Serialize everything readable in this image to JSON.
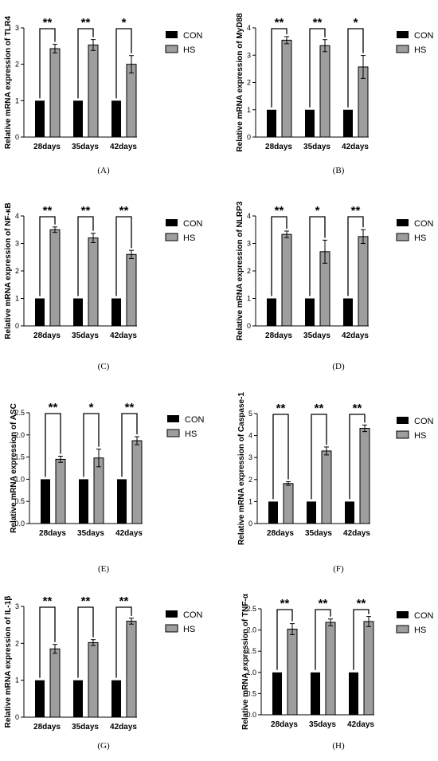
{
  "figure": {
    "legend": {
      "con_label": "CON",
      "hs_label": "HS",
      "con_color": "#000000",
      "hs_color": "#9e9e9e"
    }
  },
  "chart_data": [
    {
      "type": "bar",
      "panel": "(A)",
      "ylabel": "Relative mRNA expression of TLR4",
      "ylim": [
        0,
        3
      ],
      "yticks": [
        0,
        1,
        2,
        3
      ],
      "categories": [
        "28days",
        "35days",
        "42days"
      ],
      "series": [
        {
          "name": "CON",
          "values": [
            1,
            1,
            1
          ]
        },
        {
          "name": "HS",
          "values": [
            2.43,
            2.53,
            2.0
          ],
          "errors": [
            0.12,
            0.15,
            0.24
          ]
        }
      ],
      "significance": [
        "**",
        "**",
        "*"
      ]
    },
    {
      "type": "bar",
      "panel": "(B)",
      "ylabel": "Relative mRNA expression of MyD88",
      "ylim": [
        0,
        4
      ],
      "yticks": [
        0,
        1,
        2,
        3,
        4
      ],
      "categories": [
        "28days",
        "35days",
        "42days"
      ],
      "series": [
        {
          "name": "CON",
          "values": [
            1,
            1,
            1
          ]
        },
        {
          "name": "HS",
          "values": [
            3.55,
            3.35,
            2.57
          ],
          "errors": [
            0.13,
            0.22,
            0.42
          ]
        }
      ],
      "significance": [
        "**",
        "**",
        "*"
      ]
    },
    {
      "type": "bar",
      "panel": "(C)",
      "ylabel": "Relative mRNA expression of NF-κB",
      "ylim": [
        0,
        4
      ],
      "yticks": [
        0,
        1,
        2,
        3,
        4
      ],
      "categories": [
        "28days",
        "35days",
        "42days"
      ],
      "series": [
        {
          "name": "CON",
          "values": [
            1,
            1,
            1
          ]
        },
        {
          "name": "HS",
          "values": [
            3.5,
            3.2,
            2.6
          ],
          "errors": [
            0.1,
            0.17,
            0.15
          ]
        }
      ],
      "significance": [
        "**",
        "**",
        "**"
      ]
    },
    {
      "type": "bar",
      "panel": "(D)",
      "ylabel": "Relative mRNA expression of NLRP3",
      "ylim": [
        0,
        4
      ],
      "yticks": [
        0,
        1,
        2,
        3,
        4
      ],
      "categories": [
        "28days",
        "35days",
        "42days"
      ],
      "series": [
        {
          "name": "CON",
          "values": [
            1,
            1,
            1
          ]
        },
        {
          "name": "HS",
          "values": [
            3.33,
            2.7,
            3.25
          ],
          "errors": [
            0.12,
            0.42,
            0.25
          ]
        }
      ],
      "significance": [
        "**",
        "*",
        "**"
      ]
    },
    {
      "type": "bar",
      "panel": "(E)",
      "ylabel": "Relative mRNA expression of ASC",
      "ylim": [
        0,
        2.5
      ],
      "yticks": [
        0,
        0.5,
        1.0,
        1.5,
        2.0,
        2.5
      ],
      "ytick_labels": [
        "0.0",
        "0.5",
        "1.0",
        "1.5",
        "2.0",
        "2.5"
      ],
      "categories": [
        "28days",
        "35days",
        "42days"
      ],
      "series": [
        {
          "name": "CON",
          "values": [
            1,
            1,
            1
          ]
        },
        {
          "name": "HS",
          "values": [
            1.45,
            1.48,
            1.87
          ],
          "errors": [
            0.07,
            0.2,
            0.09
          ]
        }
      ],
      "significance": [
        "**",
        "*",
        "**"
      ]
    },
    {
      "type": "bar",
      "panel": "(F)",
      "ylabel": "Relative mRNA expression of Caspase-1",
      "ylim": [
        0,
        5
      ],
      "yticks": [
        0,
        1,
        2,
        3,
        4,
        5
      ],
      "categories": [
        "28days",
        "35days",
        "42days"
      ],
      "series": [
        {
          "name": "CON",
          "values": [
            1,
            1,
            1
          ]
        },
        {
          "name": "HS",
          "values": [
            1.82,
            3.3,
            4.33
          ],
          "errors": [
            0.08,
            0.18,
            0.15
          ]
        }
      ],
      "significance": [
        "**",
        "**",
        "**"
      ]
    },
    {
      "type": "bar",
      "panel": "(G)",
      "ylabel": "Relative mRNA expression of IL-1β",
      "ylim": [
        0,
        3
      ],
      "yticks": [
        0,
        1,
        2,
        3
      ],
      "categories": [
        "28days",
        "35days",
        "42days"
      ],
      "series": [
        {
          "name": "CON",
          "values": [
            1,
            1,
            1
          ]
        },
        {
          "name": "HS",
          "values": [
            1.85,
            2.02,
            2.6
          ],
          "errors": [
            0.12,
            0.08,
            0.08
          ]
        }
      ],
      "significance": [
        "**",
        "**",
        "**"
      ]
    },
    {
      "type": "bar",
      "panel": "(H)",
      "ylabel": "Relative mRNA expression of TNF-α",
      "ylim": [
        0,
        2.5
      ],
      "yticks": [
        0,
        0.5,
        1.0,
        1.5,
        2.0,
        2.5
      ],
      "ytick_labels": [
        "0.0",
        "0.5",
        "1.0",
        "1.5",
        "2.0",
        "2.5"
      ],
      "categories": [
        "28days",
        "35days",
        "42days"
      ],
      "series": [
        {
          "name": "CON",
          "values": [
            1,
            1,
            1
          ]
        },
        {
          "name": "HS",
          "values": [
            2.02,
            2.18,
            2.2
          ],
          "errors": [
            0.13,
            0.08,
            0.12
          ]
        }
      ],
      "significance": [
        "**",
        "**",
        "**"
      ]
    }
  ]
}
